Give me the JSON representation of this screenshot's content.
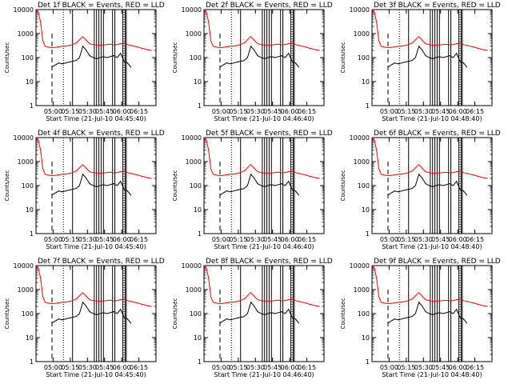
{
  "figure": {
    "panels": [
      {
        "title": "Det 1f BLACK = Events, RED = LLD",
        "ylabel": "Counts/sec",
        "xlabel": "Start Time (21-Jul-10 04:45:40)",
        "xticks": [
          "05:00",
          "05:15",
          "05:30",
          "05:45",
          "06:00",
          "06:15"
        ],
        "yticks": [
          "1",
          "10",
          "100",
          "1000",
          "10000"
        ]
      },
      {
        "title": "Det 2f BLACK = Events, RED = LLD",
        "ylabel": "Counts/sec",
        "xlabel": "Start Time (21-Jul-10 04:46:40)",
        "xticks": [
          "05:00",
          "05:15",
          "05:30",
          "05:45",
          "06:00",
          "06:15"
        ],
        "yticks": [
          "1",
          "10",
          "100",
          "1000",
          "10000"
        ]
      },
      {
        "title": "Det 3f BLACK = Events, RED = LLD",
        "ylabel": "Counts/sec",
        "xlabel": "Start Time (21-Jul-10 04:48:40)",
        "xticks": [
          "05:00",
          "05:15",
          "05:30",
          "05:45",
          "06:00",
          "06:15"
        ],
        "yticks": [
          "1",
          "10",
          "100",
          "1000",
          "10000"
        ]
      },
      {
        "title": "Det 4f BLACK = Events, RED = LLD",
        "ylabel": "Counts/sec",
        "xlabel": "Start Time (21-Jul-10 04:45:40)",
        "xticks": [
          "05:00",
          "05:15",
          "05:30",
          "05:45",
          "06:00",
          "06:15"
        ],
        "yticks": [
          "1",
          "10",
          "100",
          "1000",
          "10000"
        ]
      },
      {
        "title": "Det 5f BLACK = Events, RED = LLD",
        "ylabel": "Counts/sec",
        "xlabel": "Start Time (21-Jul-10 04:46:40)",
        "xticks": [
          "05:00",
          "05:15",
          "05:30",
          "05:45",
          "06:00",
          "06:15"
        ],
        "yticks": [
          "1",
          "10",
          "100",
          "1000",
          "10000"
        ]
      },
      {
        "title": "Det 6f BLACK = Events, RED = LLD",
        "ylabel": "Counts/sec",
        "xlabel": "Start Time (21-Jul-10 04:48:40)",
        "xticks": [
          "05:00",
          "05:15",
          "05:30",
          "05:45",
          "06:00",
          "06:15"
        ],
        "yticks": [
          "1",
          "10",
          "100",
          "1000",
          "10000"
        ]
      },
      {
        "title": "Det 7f BLACK = Events, RED = LLD",
        "ylabel": "Counts/sec",
        "xlabel": "Start Time (21-Jul-10 04:45:40)",
        "xticks": [
          "05:00",
          "05:15",
          "05:30",
          "05:45",
          "06:00",
          "06:15"
        ],
        "yticks": [
          "1",
          "10",
          "100",
          "1000",
          "10000"
        ]
      },
      {
        "title": "Det 8f BLACK = Events, RED = LLD",
        "ylabel": "Counts/sec",
        "xlabel": "Start Time (21-Jul-10 04:46:40)",
        "xticks": [
          "05:00",
          "05:15",
          "05:30",
          "05:45",
          "06:00",
          "06:15"
        ],
        "yticks": [
          "1",
          "10",
          "100",
          "1000",
          "10000"
        ]
      },
      {
        "title": "Det 9f BLACK = Events, RED = LLD",
        "ylabel": "Counts/sec",
        "xlabel": "Start Time (21-Jul-10 04:48:40)",
        "xticks": [
          "05:00",
          "05:15",
          "05:30",
          "05:45",
          "06:00",
          "06:15"
        ],
        "yticks": [
          "1",
          "10",
          "100",
          "1000",
          "10000"
        ]
      }
    ]
  },
  "chart_data": [
    {
      "type": "line",
      "panel": 1,
      "title": "Det 1f BLACK = Events, RED = LLD",
      "xlabel": "Start Time (21-Jul-10 04:45:40)",
      "ylabel": "Counts/sec",
      "y_scale": "log",
      "ylim": [
        1,
        10000
      ],
      "x_range": [
        "04:45",
        "06:30"
      ],
      "series": [
        {
          "name": "Events",
          "color": "#000000",
          "x": [
            "04:59",
            "05:02",
            "05:05",
            "05:08",
            "05:11",
            "05:14",
            "05:17",
            "05:20",
            "05:23",
            "05:26",
            "05:29",
            "05:32",
            "05:35",
            "05:38",
            "05:41",
            "05:44",
            "05:47",
            "05:50",
            "05:53",
            "05:56",
            "05:59",
            "06:02",
            "06:05",
            "06:08"
          ],
          "y": [
            40,
            50,
            60,
            55,
            60,
            65,
            70,
            75,
            100,
            300,
            200,
            120,
            100,
            90,
            100,
            110,
            100,
            110,
            120,
            100,
            150,
            70,
            60,
            40
          ]
        },
        {
          "name": "LLD",
          "color": "#ff0000",
          "x": [
            "04:45",
            "04:47",
            "04:49",
            "04:51",
            "04:53",
            "04:55",
            "04:57",
            "04:59",
            "05:02",
            "05:05",
            "05:08",
            "05:11",
            "05:14",
            "05:17",
            "05:20",
            "05:23",
            "05:26",
            "05:29",
            "05:32",
            "05:35",
            "05:38",
            "05:41",
            "05:44",
            "05:47",
            "05:50",
            "05:53",
            "05:56",
            "05:59",
            "06:02",
            "06:05",
            "06:08",
            "06:11",
            "06:14",
            "06:17",
            "06:20",
            "06:23",
            "06:26"
          ],
          "y": [
            10000,
            8000,
            3000,
            500,
            300,
            280,
            270,
            260,
            270,
            280,
            300,
            300,
            320,
            350,
            400,
            550,
            750,
            520,
            380,
            350,
            330,
            330,
            340,
            350,
            360,
            340,
            350,
            380,
            400,
            350,
            320,
            300,
            280,
            250,
            230,
            210,
            200
          ]
        }
      ],
      "vertical_lines": {
        "dashed": [
          "04:59"
        ],
        "dotted": [
          "05:09",
          "05:54",
          "06:02"
        ],
        "solid": [
          "05:17",
          "05:36",
          "05:38",
          "05:40",
          "05:42",
          "05:44",
          "05:52",
          "05:54",
          "06:01",
          "06:03",
          "06:04"
        ]
      }
    },
    {
      "type": "line",
      "panel": 2,
      "title": "Det 2f BLACK = Events, RED = LLD",
      "xlabel": "Start Time (21-Jul-10 04:46:40)",
      "ylabel": "Counts/sec",
      "y_scale": "log",
      "ylim": [
        1,
        10000
      ],
      "note": "same trace shape as panel 1"
    },
    {
      "type": "line",
      "panel": 3,
      "title": "Det 3f BLACK = Events, RED = LLD",
      "xlabel": "Start Time (21-Jul-10 04:48:40)",
      "ylabel": "Counts/sec",
      "y_scale": "log",
      "ylim": [
        1,
        10000
      ],
      "note": "same trace shape as panel 1"
    },
    {
      "type": "line",
      "panel": 4,
      "title": "Det 4f BLACK = Events, RED = LLD",
      "xlabel": "Start Time (21-Jul-10 04:45:40)",
      "ylabel": "Counts/sec",
      "y_scale": "log",
      "ylim": [
        1,
        10000
      ],
      "note": "same trace shape as panel 1"
    },
    {
      "type": "line",
      "panel": 5,
      "title": "Det 5f BLACK = Events, RED = LLD",
      "xlabel": "Start Time (21-Jul-10 04:46:40)",
      "ylabel": "Counts/sec",
      "y_scale": "log",
      "ylim": [
        1,
        10000
      ],
      "note": "same trace shape as panel 1"
    },
    {
      "type": "line",
      "panel": 6,
      "title": "Det 6f BLACK = Events, RED = LLD",
      "xlabel": "Start Time (21-Jul-10 04:48:40)",
      "ylabel": "Counts/sec",
      "y_scale": "log",
      "ylim": [
        1,
        10000
      ],
      "note": "same trace shape as panel 1"
    },
    {
      "type": "line",
      "panel": 7,
      "title": "Det 7f BLACK = Events, RED = LLD",
      "xlabel": "Start Time (21-Jul-10 04:45:40)",
      "ylabel": "Counts/sec",
      "y_scale": "log",
      "ylim": [
        1,
        10000
      ],
      "note": "same trace shape as panel 1"
    },
    {
      "type": "line",
      "panel": 8,
      "title": "Det 8f BLACK = Events, RED = LLD",
      "xlabel": "Start Time (21-Jul-10 04:46:40)",
      "ylabel": "Counts/sec",
      "y_scale": "log",
      "ylim": [
        1,
        10000
      ],
      "note": "same trace shape as panel 1"
    },
    {
      "type": "line",
      "panel": 9,
      "title": "Det 9f BLACK = Events, RED = LLD",
      "xlabel": "Start Time (21-Jul-10 04:48:40)",
      "ylabel": "Counts/sec",
      "y_scale": "log",
      "ylim": [
        1,
        10000
      ],
      "note": "same trace shape as panel 1"
    }
  ]
}
